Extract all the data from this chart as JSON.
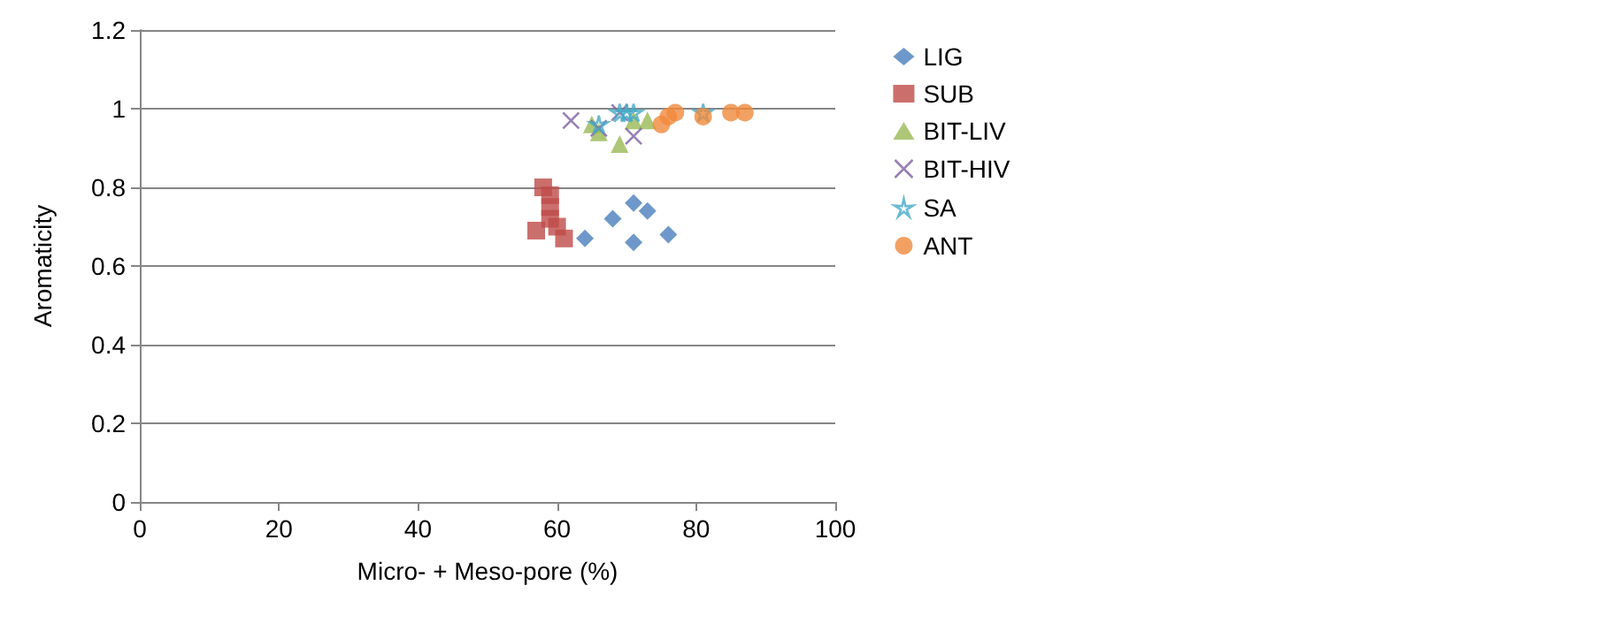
{
  "chart_data": {
    "type": "scatter",
    "xlabel": "Micro- + Meso-pore (%)",
    "ylabel": "Aromaticity",
    "xlim": [
      0,
      100
    ],
    "xticks": [
      0,
      20,
      40,
      60,
      80,
      100
    ],
    "ylim": [
      0,
      1.2
    ],
    "yticks": [
      0,
      0.2,
      0.4,
      0.6,
      0.8,
      1,
      1.2
    ],
    "grid": "y",
    "legend": "right",
    "series": [
      {
        "name": "LIG",
        "color": "#4a7ebb",
        "marker": "diamond",
        "x": [
          64,
          68,
          71,
          73,
          71,
          76
        ],
        "values": [
          0.67,
          0.72,
          0.76,
          0.74,
          0.66,
          0.68
        ]
      },
      {
        "name": "SUB",
        "color": "#be4b48",
        "marker": "square",
        "x": [
          58,
          59,
          59,
          59,
          57,
          60,
          61
        ],
        "values": [
          0.8,
          0.78,
          0.75,
          0.72,
          0.69,
          0.7,
          0.67
        ]
      },
      {
        "name": "BIT-LIV",
        "color": "#98b954",
        "marker": "triangle",
        "x": [
          65,
          66,
          69,
          71,
          73
        ],
        "values": [
          0.96,
          0.94,
          0.91,
          0.97,
          0.97
        ]
      },
      {
        "name": "BIT-HIV",
        "color": "#7d60a0",
        "marker": "cross",
        "x": [
          62,
          66,
          69,
          71
        ],
        "values": [
          0.97,
          0.95,
          0.99,
          0.93
        ]
      },
      {
        "name": "SA",
        "color": "#46aac5",
        "marker": "star",
        "x": [
          66,
          69,
          70,
          71,
          81
        ],
        "values": [
          0.96,
          0.99,
          0.99,
          0.99,
          0.99
        ]
      },
      {
        "name": "ANT",
        "color": "#f08a3c",
        "marker": "circle",
        "x": [
          75,
          76,
          77,
          81,
          85,
          87
        ],
        "values": [
          0.96,
          0.98,
          0.99,
          0.98,
          0.99,
          0.99
        ]
      }
    ]
  }
}
